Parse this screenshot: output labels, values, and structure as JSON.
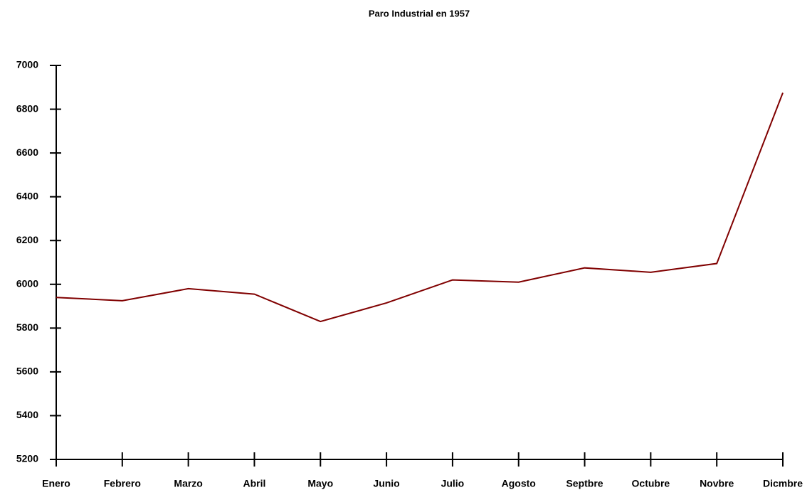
{
  "chart_data": {
    "type": "line",
    "title": "Paro Industrial en 1957",
    "categories": [
      "Enero",
      "Febrero",
      "Marzo",
      "Abril",
      "Mayo",
      "Junio",
      "Julio",
      "Agosto",
      "Septbre",
      "Octubre",
      "Novbre",
      "Dicmbre"
    ],
    "series": [
      {
        "color": "#800000",
        "values": [
          5940,
          5925,
          5980,
          5955,
          5830,
          5915,
          6020,
          6010,
          6075,
          6055,
          6095,
          6875
        ]
      }
    ],
    "ylim": [
      5200,
      7000
    ],
    "yticks": [
      5200,
      5400,
      5600,
      5800,
      6000,
      6200,
      6400,
      6600,
      6800,
      7000
    ],
    "grid": false
  }
}
